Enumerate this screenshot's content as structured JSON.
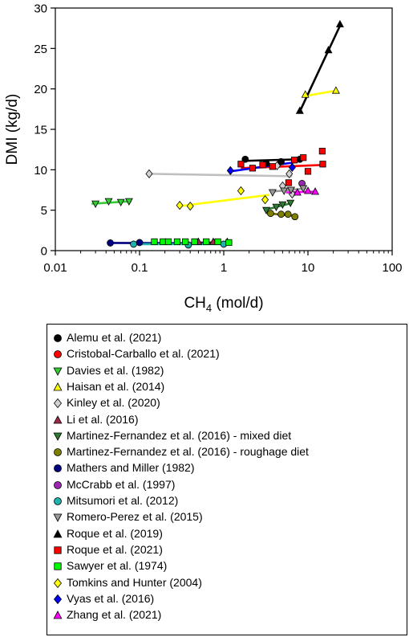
{
  "chart_data": {
    "type": "scatter",
    "xscale": "log",
    "xlim": [
      0.01,
      100
    ],
    "ylim": [
      0,
      30
    ],
    "xticks": [
      {
        "value": 0.01,
        "label": "0.01"
      },
      {
        "value": 0.1,
        "label": "0.1"
      },
      {
        "value": 1,
        "label": "1"
      },
      {
        "value": 10,
        "label": "10"
      },
      {
        "value": 100,
        "label": "100"
      }
    ],
    "yticks": [
      {
        "value": 0,
        "label": "0"
      },
      {
        "value": 5,
        "label": "5"
      },
      {
        "value": 10,
        "label": "10"
      },
      {
        "value": 15,
        "label": "15"
      },
      {
        "value": 20,
        "label": "20"
      },
      {
        "value": 25,
        "label": "25"
      },
      {
        "value": 30,
        "label": "30"
      }
    ],
    "xlabel": {
      "main": "CH",
      "sub": "4",
      "rest": " (mol/d)"
    },
    "ylabel": "DMI (kg/d)",
    "legend_position": "below",
    "series": [
      {
        "name": "Alemu et al. (2021)",
        "marker": "circle",
        "color": "#000000",
        "line_color": "#000000",
        "points": [
          [
            1.8,
            11.3
          ],
          [
            3.2,
            10.8
          ],
          [
            4.8,
            11.0
          ],
          [
            8.0,
            11.3
          ]
        ],
        "fit": [
          [
            1.8,
            11.1
          ],
          [
            8.2,
            11.3
          ]
        ]
      },
      {
        "name": "Cristobal-Carballo et al. (2021)",
        "marker": "circle",
        "color": "#ff0000",
        "line_color": null,
        "points": [],
        "fit": null
      },
      {
        "name": "Davies et al. (1982)",
        "marker": "triangle-down",
        "color": "#33cc33",
        "line_color": "#33cc33",
        "points": [
          [
            0.03,
            5.8
          ],
          [
            0.043,
            6.1
          ],
          [
            0.06,
            6.0
          ],
          [
            0.075,
            6.1
          ]
        ],
        "fit": [
          [
            0.027,
            5.8
          ],
          [
            0.08,
            6.1
          ]
        ]
      },
      {
        "name": "Haisan et al. (2014)",
        "marker": "triangle-up",
        "color": "#ffff00",
        "line_color": "#ffff00",
        "points": [
          [
            9.3,
            19.3
          ],
          [
            21.5,
            19.8
          ]
        ],
        "fit": [
          [
            9.0,
            19.1
          ],
          [
            22.0,
            19.8
          ]
        ]
      },
      {
        "name": "Kinley et al. (2020)",
        "marker": "diamond",
        "color": "#d3d3d3",
        "line_color": "#bfbfbf",
        "points": [
          [
            0.13,
            9.5
          ],
          [
            5.0,
            8.0
          ],
          [
            6.0,
            9.5
          ],
          [
            6.5,
            7.0
          ],
          [
            4.3,
            10.5
          ]
        ],
        "fit": [
          [
            0.13,
            9.5
          ],
          [
            6.5,
            9.2
          ]
        ]
      },
      {
        "name": "Li et al. (2016)",
        "marker": "triangle-up",
        "color": "#a0284a",
        "line_color": "#8b1a3c",
        "points": [
          [
            0.5,
            1.1
          ],
          [
            0.75,
            1.1
          ],
          [
            1.1,
            1.1
          ]
        ],
        "fit": [
          [
            0.45,
            1.0
          ],
          [
            1.2,
            1.0
          ]
        ]
      },
      {
        "name": "Martinez-Fernandez et al. (2016) - mixed diet",
        "marker": "triangle-down",
        "color": "#2e7d32",
        "line_color": "#2e7d32",
        "points": [
          [
            3.2,
            5.0
          ],
          [
            4.2,
            5.4
          ],
          [
            5.0,
            5.7
          ],
          [
            6.2,
            5.9
          ]
        ],
        "fit": [
          [
            3.0,
            5.0
          ],
          [
            6.5,
            5.9
          ]
        ]
      },
      {
        "name": "Martinez-Fernandez et al. (2016) - roughage diet",
        "marker": "circle",
        "color": "#808000",
        "line_color": "#6b6b00",
        "points": [
          [
            3.6,
            4.6
          ],
          [
            4.8,
            4.5
          ],
          [
            5.8,
            4.5
          ],
          [
            7.0,
            4.2
          ]
        ],
        "fit": [
          [
            3.4,
            4.6
          ],
          [
            7.0,
            4.3
          ]
        ]
      },
      {
        "name": "Mathers and Miller (1982)",
        "marker": "circle",
        "color": "#000080",
        "line_color": "#000080",
        "points": [
          [
            0.045,
            0.95
          ],
          [
            0.1,
            1.0
          ]
        ],
        "fit": [
          [
            0.045,
            0.95
          ],
          [
            1.2,
            0.9
          ]
        ]
      },
      {
        "name": "McCrabb et al. (1997)",
        "marker": "circle",
        "color": "#9c27b0",
        "line_color": null,
        "points": [
          [
            8.5,
            8.3
          ]
        ],
        "fit": null
      },
      {
        "name": "Mitsumori et al. (2012)",
        "marker": "circle",
        "color": "#20b2aa",
        "line_color": "#20b2aa",
        "points": [
          [
            0.085,
            0.8
          ],
          [
            0.38,
            0.7
          ],
          [
            1.0,
            0.8
          ]
        ],
        "fit": [
          [
            0.08,
            0.8
          ],
          [
            1.05,
            0.8
          ]
        ]
      },
      {
        "name": "Romero-Perez et al. (2015)",
        "marker": "triangle-down",
        "color": "#999999",
        "line_color": "#999999",
        "points": [
          [
            3.8,
            7.2
          ],
          [
            5.2,
            7.4
          ],
          [
            6.3,
            7.5
          ],
          [
            8.8,
            7.7
          ]
        ],
        "fit": [
          [
            3.8,
            7.3
          ],
          [
            9.5,
            7.7
          ]
        ]
      },
      {
        "name": "Roque et al. (2019)",
        "marker": "triangle-up",
        "color": "#000000",
        "line_color": "#000000",
        "points": [
          [
            8.0,
            17.3
          ],
          [
            17.5,
            24.8
          ],
          [
            24.0,
            28.0
          ]
        ],
        "fit": [
          [
            8.0,
            17.2
          ],
          [
            24.5,
            28.0
          ]
        ]
      },
      {
        "name": "Roque et al. (2021)",
        "marker": "square",
        "color": "#ff0000",
        "line_color": "#ff0000",
        "points": [
          [
            1.6,
            10.7
          ],
          [
            2.2,
            10.2
          ],
          [
            2.9,
            10.6
          ],
          [
            3.8,
            10.4
          ],
          [
            5.9,
            8.4
          ],
          [
            6.9,
            11.2
          ],
          [
            8.8,
            11.5
          ],
          [
            10.0,
            9.8
          ],
          [
            14.8,
            12.3
          ],
          [
            15.0,
            10.7
          ]
        ],
        "fit": [
          [
            1.6,
            10.2
          ],
          [
            15.5,
            10.6
          ]
        ]
      },
      {
        "name": "Sawyer et al. (1974)",
        "marker": "square",
        "color": "#00ff00",
        "line_color": null,
        "points": [
          [
            0.15,
            1.1
          ],
          [
            0.19,
            1.1
          ],
          [
            0.22,
            1.1
          ],
          [
            0.28,
            1.1
          ],
          [
            0.35,
            1.1
          ],
          [
            0.45,
            1.1
          ],
          [
            0.62,
            1.1
          ],
          [
            0.85,
            1.1
          ],
          [
            1.15,
            1.0
          ]
        ],
        "fit": null
      },
      {
        "name": "Tomkins and Hunter (2004)",
        "marker": "diamond",
        "color": "#ffff00",
        "line_color": "#ffff00",
        "points": [
          [
            0.3,
            5.6
          ],
          [
            0.4,
            5.5
          ],
          [
            1.6,
            7.4
          ],
          [
            3.1,
            6.3
          ]
        ],
        "fit": [
          [
            0.3,
            5.5
          ],
          [
            3.5,
            6.9
          ]
        ]
      },
      {
        "name": "Vyas et al. (2016)",
        "marker": "diamond",
        "color": "#0000ff",
        "line_color": "#0000ff",
        "points": [
          [
            1.2,
            9.9
          ],
          [
            6.5,
            10.3
          ]
        ],
        "fit": [
          [
            1.2,
            9.8
          ],
          [
            6.8,
            10.9
          ]
        ]
      },
      {
        "name": "Zhang et al. (2021)",
        "marker": "triangle-up",
        "color": "#ff00ff",
        "line_color": "#ff00ff",
        "points": [
          [
            7.5,
            7.2
          ],
          [
            10.0,
            7.4
          ],
          [
            12.2,
            7.3
          ]
        ],
        "fit": [
          [
            5.5,
            7.2
          ],
          [
            12.5,
            7.3
          ]
        ]
      }
    ]
  }
}
